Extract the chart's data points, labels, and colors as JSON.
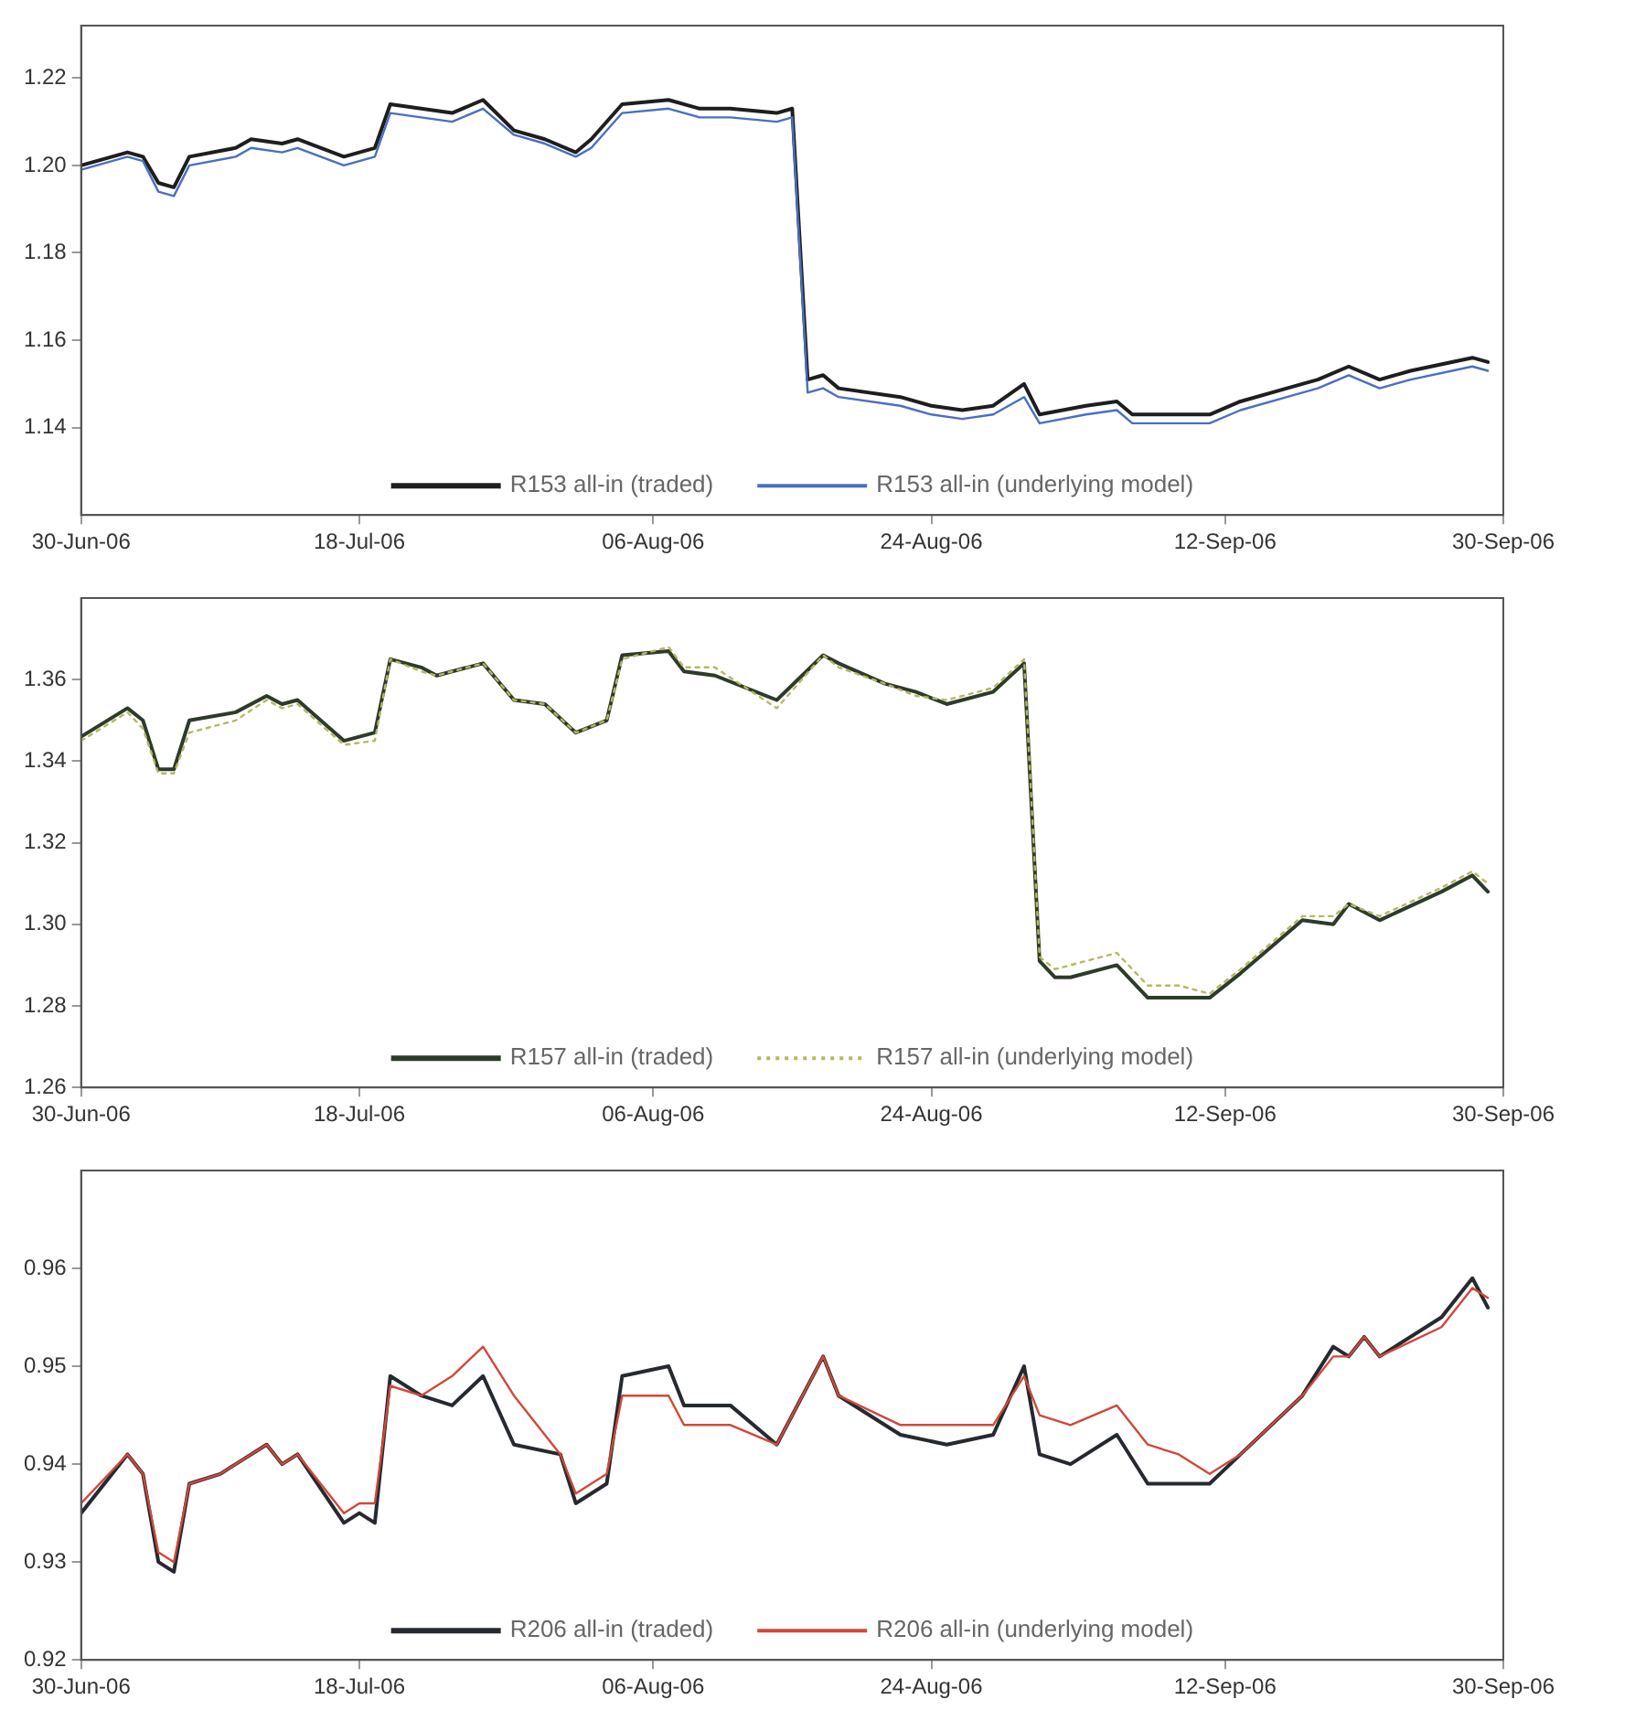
{
  "chart_data": [
    {
      "type": "line",
      "legend": "bottom",
      "grid": false,
      "xlim": [
        "2006-06-30",
        "2006-09-30"
      ],
      "xticks": [
        {
          "value": "2006-06-30",
          "label": "30-Jun-06"
        },
        {
          "value": "2006-07-18",
          "label": "18-Jul-06"
        },
        {
          "value": "2006-08-06",
          "label": "06-Aug-06"
        },
        {
          "value": "2006-08-24",
          "label": "24-Aug-06"
        },
        {
          "value": "2006-09-12",
          "label": "12-Sep-06"
        },
        {
          "value": "2006-09-30",
          "label": "30-Sep-06"
        }
      ],
      "ylim": [
        1.12,
        1.232
      ],
      "yticks": [
        1.14,
        1.16,
        1.18,
        {
          "value": 1.2,
          "label": "1.20"
        },
        1.22
      ],
      "x": [
        "2006-06-30",
        "2006-07-03",
        "2006-07-04",
        "2006-07-05",
        "2006-07-06",
        "2006-07-07",
        "2006-07-10",
        "2006-07-11",
        "2006-07-13",
        "2006-07-14",
        "2006-07-17",
        "2006-07-19",
        "2006-07-20",
        "2006-07-24",
        "2006-07-26",
        "2006-07-28",
        "2006-07-30",
        "2006-08-01",
        "2006-08-02",
        "2006-08-04",
        "2006-08-07",
        "2006-08-09",
        "2006-08-11",
        "2006-08-14",
        "2006-08-15",
        "2006-08-16",
        "2006-08-17",
        "2006-08-18",
        "2006-08-22",
        "2006-08-24",
        "2006-08-26",
        "2006-08-28",
        "2006-08-30",
        "2006-08-31",
        "2006-09-03",
        "2006-09-05",
        "2006-09-06",
        "2006-09-11",
        "2006-09-13",
        "2006-09-16",
        "2006-09-18",
        "2006-09-20",
        "2006-09-22",
        "2006-09-24",
        "2006-09-28",
        "2006-09-29"
      ],
      "series": [
        {
          "name": "R153 all-in (traded)",
          "color": "#1e1e1e",
          "values": [
            1.2,
            1.203,
            1.202,
            1.196,
            1.195,
            1.202,
            1.204,
            1.206,
            1.205,
            1.206,
            1.202,
            1.204,
            1.214,
            1.212,
            1.215,
            1.208,
            1.206,
            1.203,
            1.206,
            1.214,
            1.215,
            1.213,
            1.213,
            1.212,
            1.213,
            1.151,
            1.152,
            1.149,
            1.147,
            1.145,
            1.144,
            1.145,
            1.15,
            1.143,
            1.145,
            1.146,
            1.143,
            1.143,
            1.146,
            1.149,
            1.151,
            1.154,
            1.151,
            1.153,
            1.156,
            1.155
          ]
        },
        {
          "name": "R153 all-in (underlying model)",
          "color": "#4a6fc0",
          "values": [
            1.199,
            1.202,
            1.201,
            1.194,
            1.193,
            1.2,
            1.202,
            1.204,
            1.203,
            1.204,
            1.2,
            1.202,
            1.212,
            1.21,
            1.213,
            1.207,
            1.205,
            1.202,
            1.204,
            1.212,
            1.213,
            1.211,
            1.211,
            1.21,
            1.211,
            1.148,
            1.149,
            1.147,
            1.145,
            1.143,
            1.142,
            1.143,
            1.147,
            1.141,
            1.143,
            1.144,
            1.141,
            1.141,
            1.144,
            1.147,
            1.149,
            1.152,
            1.149,
            1.151,
            1.154,
            1.153
          ]
        }
      ]
    },
    {
      "type": "line",
      "legend": "bottom",
      "grid": false,
      "xlim": [
        "2006-06-30",
        "2006-09-30"
      ],
      "xticks": [
        {
          "value": "2006-06-30",
          "label": "30-Jun-06"
        },
        {
          "value": "2006-07-18",
          "label": "18-Jul-06"
        },
        {
          "value": "2006-08-06",
          "label": "06-Aug-06"
        },
        {
          "value": "2006-08-24",
          "label": "24-Aug-06"
        },
        {
          "value": "2006-09-12",
          "label": "12-Sep-06"
        },
        {
          "value": "2006-09-30",
          "label": "30-Sep-06"
        }
      ],
      "ylim": [
        1.26,
        1.38
      ],
      "yticks": [
        1.26,
        1.28,
        {
          "value": 1.3,
          "label": "1.30"
        },
        1.32,
        1.34,
        1.36
      ],
      "x": [
        "2006-06-30",
        "2006-07-03",
        "2006-07-04",
        "2006-07-05",
        "2006-07-06",
        "2006-07-07",
        "2006-07-10",
        "2006-07-12",
        "2006-07-13",
        "2006-07-14",
        "2006-07-17",
        "2006-07-19",
        "2006-07-20",
        "2006-07-22",
        "2006-07-23",
        "2006-07-26",
        "2006-07-28",
        "2006-07-30",
        "2006-08-01",
        "2006-08-03",
        "2006-08-04",
        "2006-08-07",
        "2006-08-08",
        "2006-08-10",
        "2006-08-14",
        "2006-08-17",
        "2006-08-18",
        "2006-08-21",
        "2006-08-23",
        "2006-08-25",
        "2006-08-28",
        "2006-08-30",
        "2006-08-31",
        "2006-09-01",
        "2006-09-02",
        "2006-09-05",
        "2006-09-07",
        "2006-09-09",
        "2006-09-11",
        "2006-09-13",
        "2006-09-17",
        "2006-09-19",
        "2006-09-20",
        "2006-09-22",
        "2006-09-26",
        "2006-09-28",
        "2006-09-29"
      ],
      "series": [
        {
          "name": "R157 all-in (traded)",
          "color": "#2e3b2a",
          "values": [
            1.346,
            1.353,
            1.35,
            1.338,
            1.338,
            1.35,
            1.352,
            1.356,
            1.354,
            1.355,
            1.345,
            1.347,
            1.365,
            1.363,
            1.361,
            1.364,
            1.355,
            1.354,
            1.347,
            1.35,
            1.366,
            1.367,
            1.362,
            1.361,
            1.355,
            1.366,
            1.364,
            1.359,
            1.357,
            1.354,
            1.357,
            1.364,
            1.291,
            1.287,
            1.287,
            1.29,
            1.282,
            1.282,
            1.282,
            1.288,
            1.301,
            1.3,
            1.305,
            1.301,
            1.308,
            1.312,
            1.308
          ]
        },
        {
          "name": "R157 all-in (underlying model)",
          "color": "#b5b860",
          "line_style": "dotted",
          "values": [
            1.345,
            1.352,
            1.348,
            1.337,
            1.337,
            1.347,
            1.35,
            1.355,
            1.353,
            1.354,
            1.344,
            1.345,
            1.365,
            1.362,
            1.361,
            1.364,
            1.355,
            1.354,
            1.347,
            1.35,
            1.365,
            1.368,
            1.363,
            1.363,
            1.353,
            1.366,
            1.363,
            1.359,
            1.356,
            1.355,
            1.358,
            1.365,
            1.292,
            1.289,
            1.29,
            1.293,
            1.285,
            1.285,
            1.283,
            1.289,
            1.302,
            1.302,
            1.305,
            1.302,
            1.309,
            1.313,
            1.31
          ]
        }
      ]
    },
    {
      "type": "line",
      "legend": "bottom",
      "grid": false,
      "xlim": [
        "2006-06-30",
        "2006-09-30"
      ],
      "xticks": [
        {
          "value": "2006-06-30",
          "label": "30-Jun-06"
        },
        {
          "value": "2006-07-18",
          "label": "18-Jul-06"
        },
        {
          "value": "2006-08-06",
          "label": "06-Aug-06"
        },
        {
          "value": "2006-08-24",
          "label": "24-Aug-06"
        },
        {
          "value": "2006-09-12",
          "label": "12-Sep-06"
        },
        {
          "value": "2006-09-30",
          "label": "30-Sep-06"
        }
      ],
      "ylim": [
        0.92,
        0.97
      ],
      "yticks": [
        0.92,
        0.93,
        0.94,
        0.95,
        0.96
      ],
      "x": [
        "2006-06-30",
        "2006-07-03",
        "2006-07-04",
        "2006-07-05",
        "2006-07-06",
        "2006-07-07",
        "2006-07-09",
        "2006-07-12",
        "2006-07-13",
        "2006-07-14",
        "2006-07-17",
        "2006-07-18",
        "2006-07-19",
        "2006-07-20",
        "2006-07-22",
        "2006-07-24",
        "2006-07-26",
        "2006-07-28",
        "2006-07-31",
        "2006-08-01",
        "2006-08-03",
        "2006-08-04",
        "2006-08-07",
        "2006-08-08",
        "2006-08-11",
        "2006-08-14",
        "2006-08-17",
        "2006-08-18",
        "2006-08-22",
        "2006-08-25",
        "2006-08-28",
        "2006-08-30",
        "2006-08-31",
        "2006-09-02",
        "2006-09-05",
        "2006-09-07",
        "2006-09-09",
        "2006-09-11",
        "2006-09-13",
        "2006-09-17",
        "2006-09-19",
        "2006-09-20",
        "2006-09-21",
        "2006-09-22",
        "2006-09-26",
        "2006-09-28",
        "2006-09-29"
      ],
      "series": [
        {
          "name": "R206 all-in (traded)",
          "color": "#262a30",
          "values": [
            0.935,
            0.941,
            0.939,
            0.93,
            0.929,
            0.938,
            0.939,
            0.942,
            0.94,
            0.941,
            0.934,
            0.935,
            0.934,
            0.949,
            0.947,
            0.946,
            0.949,
            0.942,
            0.941,
            0.936,
            0.938,
            0.949,
            0.95,
            0.946,
            0.946,
            0.942,
            0.951,
            0.947,
            0.943,
            0.942,
            0.943,
            0.95,
            0.941,
            0.94,
            0.943,
            0.938,
            0.938,
            0.938,
            0.941,
            0.947,
            0.952,
            0.951,
            0.953,
            0.951,
            0.955,
            0.959,
            0.956
          ]
        },
        {
          "name": "R206 all-in (underlying model)",
          "color": "#d0483a",
          "values": [
            0.936,
            0.941,
            0.939,
            0.931,
            0.93,
            0.938,
            0.939,
            0.942,
            0.94,
            0.941,
            0.935,
            0.936,
            0.936,
            0.948,
            0.947,
            0.949,
            0.952,
            0.947,
            0.941,
            0.937,
            0.939,
            0.947,
            0.947,
            0.944,
            0.944,
            0.942,
            0.951,
            0.947,
            0.944,
            0.944,
            0.944,
            0.949,
            0.945,
            0.944,
            0.946,
            0.942,
            0.941,
            0.939,
            0.941,
            0.947,
            0.951,
            0.951,
            0.953,
            0.951,
            0.954,
            0.958,
            0.957
          ]
        }
      ]
    }
  ]
}
